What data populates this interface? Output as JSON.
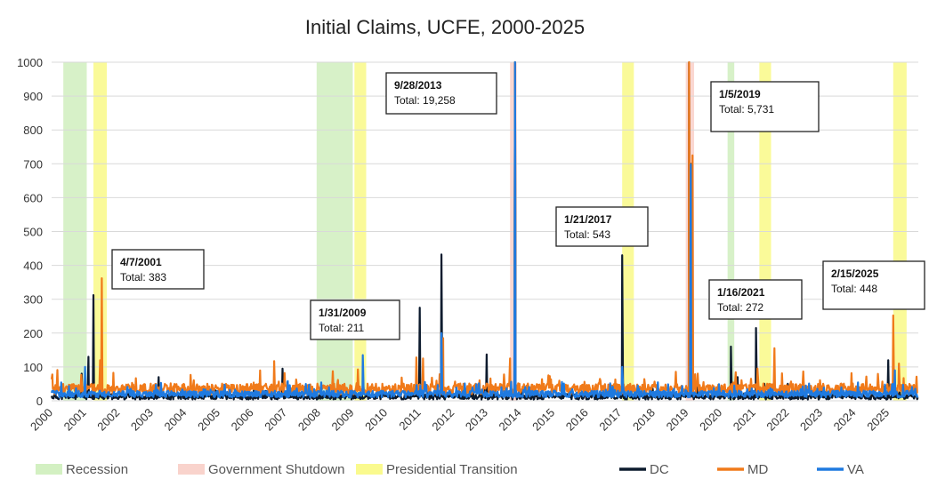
{
  "chart_data": {
    "type": "line",
    "title": "Initial Claims, UCFE, 2000-2025",
    "xlabel": "",
    "ylabel": "",
    "xlim": [
      2000,
      2025.9
    ],
    "ylim": [
      0,
      1000
    ],
    "y_ticks": [
      "0",
      "100",
      "200",
      "300",
      "400",
      "500",
      "600",
      "700",
      "800",
      "900",
      "1000"
    ],
    "x_ticks": [
      "2000",
      "2001",
      "2002",
      "2003",
      "2004",
      "2005",
      "2006",
      "2007",
      "2008",
      "2009",
      "2010",
      "2011",
      "2012",
      "2013",
      "2014",
      "2015",
      "2016",
      "2017",
      "2018",
      "2019",
      "2020",
      "2021",
      "2022",
      "2023",
      "2024",
      "2025"
    ],
    "grid": true,
    "legend_position": "bottom",
    "shading": [
      {
        "category": "Recession",
        "start": 2000.35,
        "end": 2001.05
      },
      {
        "category": "Recession",
        "start": 2007.92,
        "end": 2009.0
      },
      {
        "category": "Recession",
        "start": 2020.2,
        "end": 2020.4
      },
      {
        "category": "Government Shutdown",
        "start": 2013.7,
        "end": 2013.9
      },
      {
        "category": "Government Shutdown",
        "start": 2018.95,
        "end": 2019.2
      },
      {
        "category": "Presidential Transition",
        "start": 2001.25,
        "end": 2001.65
      },
      {
        "category": "Presidential Transition",
        "start": 2009.05,
        "end": 2009.4
      },
      {
        "category": "Presidential Transition",
        "start": 2017.05,
        "end": 2017.4
      },
      {
        "category": "Presidential Transition",
        "start": 2021.15,
        "end": 2021.5
      },
      {
        "category": "Presidential Transition",
        "start": 2025.15,
        "end": 2025.55
      }
    ],
    "legend": [
      {
        "label": "Recession",
        "kind": "box",
        "color": "#d3f0c2"
      },
      {
        "label": "Government Shutdown",
        "kind": "box",
        "color": "#f9d3cc"
      },
      {
        "label": "Presidential Transition",
        "kind": "box",
        "color": "#fafa8e"
      },
      {
        "label": "DC",
        "kind": "line",
        "color": "#0d1b2e"
      },
      {
        "label": "MD",
        "kind": "line",
        "color": "#f07a1a"
      },
      {
        "label": "VA",
        "kind": "line",
        "color": "#1f7ae0"
      }
    ],
    "series": [
      {
        "name": "DC",
        "color": "#0d1b2e",
        "baseline": 12,
        "noise": 8,
        "seed": 11,
        "points": [
          [
            2000.9,
            80
          ],
          [
            2001.1,
            130
          ],
          [
            2001.25,
            312
          ],
          [
            2003.2,
            70
          ],
          [
            2006.9,
            95
          ],
          [
            2007.05,
            55
          ],
          [
            2011.0,
            275
          ],
          [
            2011.65,
            432
          ],
          [
            2013.0,
            137
          ],
          [
            2013.85,
            1000
          ],
          [
            2017.05,
            430
          ],
          [
            2019.05,
            1000
          ],
          [
            2019.12,
            700
          ],
          [
            2020.3,
            160
          ],
          [
            2020.5,
            70
          ],
          [
            2021.05,
            215
          ],
          [
            2021.3,
            50
          ],
          [
            2022.0,
            50
          ],
          [
            2023.0,
            42
          ],
          [
            2025.0,
            120
          ],
          [
            2025.15,
            95
          ]
        ]
      },
      {
        "name": "MD",
        "color": "#f07a1a",
        "baseline": 35,
        "noise": 16,
        "seed": 23,
        "points": [
          [
            2000.02,
            78
          ],
          [
            2001.5,
            362
          ],
          [
            2001.45,
            120
          ],
          [
            2006.65,
            117
          ],
          [
            2010.9,
            128
          ],
          [
            2011.1,
            125
          ],
          [
            2011.7,
            185
          ],
          [
            2013.7,
            125
          ],
          [
            2013.85,
            1000
          ],
          [
            2019.05,
            1000
          ],
          [
            2019.15,
            725
          ],
          [
            2020.9,
            65
          ],
          [
            2021.6,
            155
          ],
          [
            2025.15,
            252
          ],
          [
            2025.32,
            110
          ]
        ]
      },
      {
        "name": "VA",
        "color": "#1f7ae0",
        "baseline": 20,
        "noise": 10,
        "seed": 37,
        "points": [
          [
            2001.0,
            100
          ],
          [
            2009.3,
            135
          ],
          [
            2011.65,
            200
          ],
          [
            2013.85,
            1000
          ],
          [
            2017.05,
            100
          ],
          [
            2019.1,
            698
          ],
          [
            2020.4,
            45
          ],
          [
            2023.6,
            40
          ],
          [
            2025.2,
            90
          ]
        ]
      }
    ],
    "annotations": [
      {
        "date": "4/7/2001",
        "total": "Total: 383",
        "x": 2001.27,
        "y": 383
      },
      {
        "date": "1/31/2009",
        "total": "Total: 211",
        "x": 2009.08,
        "y": 211
      },
      {
        "date": "9/28/2013",
        "total": "Total: 19,258",
        "x": 2013.74,
        "y": 19258
      },
      {
        "date": "1/21/2017",
        "total": "Total: 543",
        "x": 2017.05,
        "y": 543
      },
      {
        "date": "1/5/2019",
        "total": "Total: 5,731",
        "x": 2019.01,
        "y": 5731
      },
      {
        "date": "1/16/2021",
        "total": "Total: 272",
        "x": 2021.04,
        "y": 272
      },
      {
        "date": "2/15/2025",
        "total": "Total: 448",
        "x": 2025.12,
        "y": 448
      }
    ]
  }
}
